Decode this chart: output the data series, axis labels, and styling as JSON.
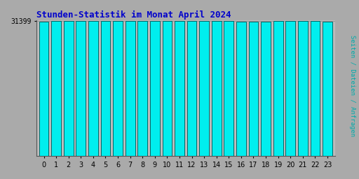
{
  "title": "Stunden-Statistik im Monat April 2024",
  "ylabel": "Seiten / Dateien / Anfragen",
  "xlabel_values": [
    0,
    1,
    2,
    3,
    4,
    5,
    6,
    7,
    8,
    9,
    10,
    11,
    12,
    13,
    14,
    15,
    16,
    17,
    18,
    19,
    20,
    21,
    22,
    23
  ],
  "values": [
    31150,
    31280,
    31300,
    31360,
    31375,
    31390,
    31395,
    31399,
    31330,
    31310,
    31275,
    31265,
    31285,
    31275,
    31265,
    31260,
    31220,
    31200,
    31160,
    31315,
    31335,
    31290,
    31250,
    31245
  ],
  "ytick_label": "31399",
  "bar_color": "#00EEEE",
  "bar_edge_color": "#006666",
  "background_color": "#AAAAAA",
  "plot_bg_color": "#BBBBBB",
  "title_color": "#0000CC",
  "ylabel_color": "#00AAAA",
  "tick_color": "#000000",
  "ymin": 0,
  "ymax": 31450,
  "ytick_value": 31399
}
